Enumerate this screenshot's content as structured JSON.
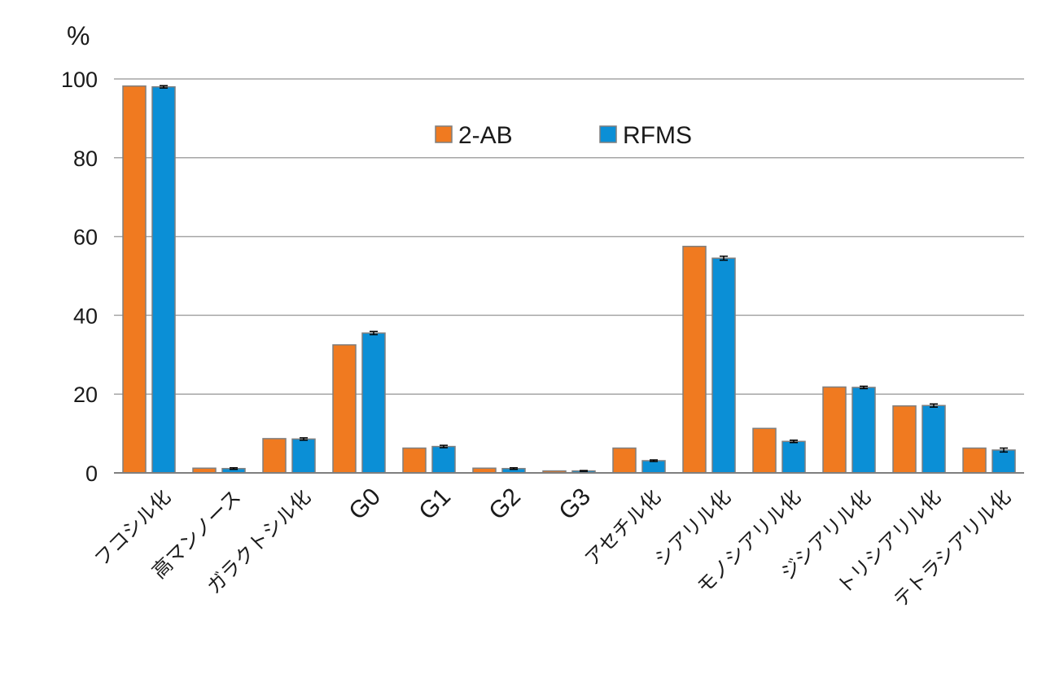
{
  "chart_data": {
    "type": "bar",
    "ylabel": "%",
    "ylim": [
      0,
      100
    ],
    "yticks": [
      0,
      20,
      40,
      60,
      80,
      100
    ],
    "grid": true,
    "legend_position": "top-center",
    "categories": [
      "フコシル化",
      "高マンノース",
      "ガラクトシル化",
      "G0",
      "G1",
      "G2",
      "G3",
      "アセチル化",
      "シアリル化",
      "モノシアリル化",
      "ジシアリル化",
      "トリシアリル化",
      "テトラシアリル化"
    ],
    "series": [
      {
        "name": "2-AB",
        "color": "#f07a20",
        "values": [
          98.2,
          1.2,
          8.7,
          32.5,
          6.3,
          1.2,
          0.5,
          6.3,
          57.5,
          11.3,
          21.8,
          17.0,
          6.3
        ],
        "errors": [
          0,
          0,
          0,
          0,
          0,
          0,
          0,
          0,
          0,
          0,
          0,
          0,
          0
        ]
      },
      {
        "name": "RFMS",
        "color": "#0b8fd6",
        "values": [
          98.0,
          1.1,
          8.6,
          35.5,
          6.7,
          1.1,
          0.5,
          3.1,
          54.5,
          8.0,
          21.7,
          17.1,
          5.8
        ],
        "errors": [
          0.3,
          0.2,
          0.3,
          0.4,
          0.3,
          0.2,
          0.1,
          0.2,
          0.5,
          0.3,
          0.3,
          0.4,
          0.5
        ]
      }
    ]
  }
}
